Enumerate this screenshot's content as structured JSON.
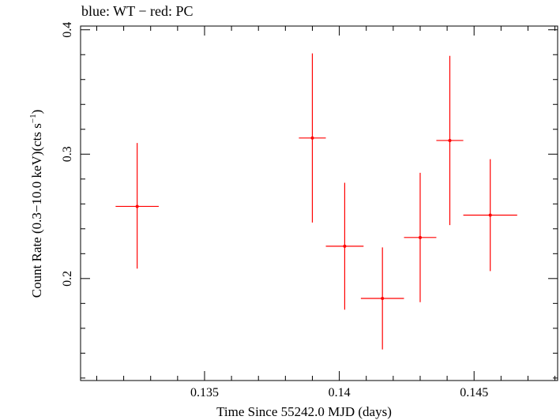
{
  "chart_data": {
    "type": "scatter",
    "title": "blue: WT − red: PC",
    "xlabel": "Time Since 55242.0 MJD (days)",
    "ylabel_main": "Count Rate (0.3−10.0 keV)(cts s",
    "ylabel_sup": "−1",
    "ylabel_close": ")",
    "xlim": [
      0.1304,
      0.1481
    ],
    "ylim": [
      0.118,
      0.403
    ],
    "x_ticks": [
      0.135,
      0.14,
      0.145
    ],
    "x_tick_labels": [
      "0.135",
      "0.14",
      "0.145"
    ],
    "y_ticks": [
      0.2,
      0.3,
      0.4
    ],
    "y_tick_labels": [
      "0.2",
      "0.3",
      "0.4"
    ],
    "series": [
      {
        "color": "#ff0000",
        "points": [
          {
            "x": 0.1325,
            "xerr": 0.0008,
            "y": 0.258,
            "yerr_low": 0.05,
            "yerr_high": 0.051
          },
          {
            "x": 0.139,
            "xerr": 0.0005,
            "y": 0.313,
            "yerr_low": 0.068,
            "yerr_high": 0.068
          },
          {
            "x": 0.1402,
            "xerr": 0.0007,
            "y": 0.226,
            "yerr_low": 0.051,
            "yerr_high": 0.051
          },
          {
            "x": 0.1416,
            "xerr": 0.0008,
            "y": 0.184,
            "yerr_low": 0.041,
            "yerr_high": 0.041
          },
          {
            "x": 0.143,
            "xerr": 0.0006,
            "y": 0.233,
            "yerr_low": 0.052,
            "yerr_high": 0.052
          },
          {
            "x": 0.1441,
            "xerr": 0.0005,
            "y": 0.311,
            "yerr_low": 0.068,
            "yerr_high": 0.068
          },
          {
            "x": 0.1456,
            "xerr": 0.001,
            "y": 0.251,
            "yerr_low": 0.045,
            "yerr_high": 0.045
          }
        ]
      }
    ]
  }
}
